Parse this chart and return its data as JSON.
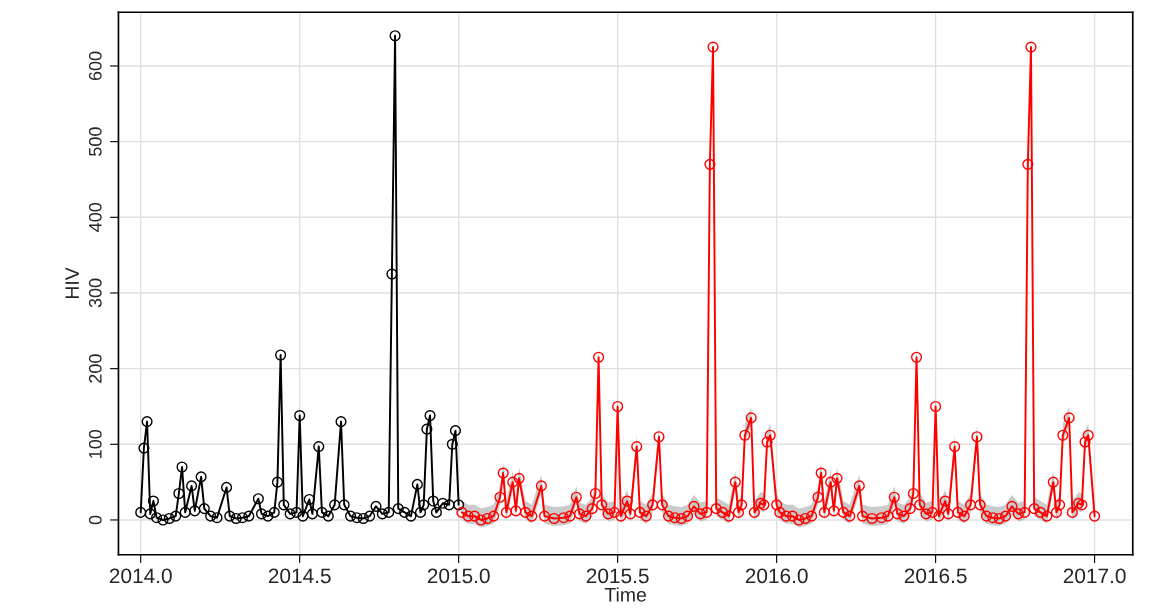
{
  "chart_data": {
    "type": "line",
    "xlabel": "Time",
    "ylabel": "HIV",
    "xlim": [
      2013.93,
      2017.12
    ],
    "ylim": [
      -46,
      671
    ],
    "xticks": [
      {
        "value": 2014,
        "label": "2014.0"
      },
      {
        "value": 2014.5,
        "label": "2014.5"
      },
      {
        "value": 2015,
        "label": "2015.0"
      },
      {
        "value": 2015.5,
        "label": "2015.5"
      },
      {
        "value": 2016,
        "label": "2016.0"
      },
      {
        "value": 2016.5,
        "label": "2016.5"
      },
      {
        "value": 2017,
        "label": "2017.0"
      }
    ],
    "yticks": [
      0,
      100,
      200,
      300,
      400,
      500,
      600
    ],
    "grid": true,
    "marker": "circle",
    "line_style": "solid",
    "series": [
      {
        "color": "#000000",
        "x": [
          2014.0,
          2014.01,
          2014.02,
          2014.03,
          2014.04,
          2014.05,
          2014.07,
          2014.09,
          2014.11,
          2014.12,
          2014.13,
          2014.14,
          2014.16,
          2014.17,
          2014.19,
          2014.2,
          2014.22,
          2014.24,
          2014.27,
          2014.28,
          2014.3,
          2014.32,
          2014.34,
          2014.37,
          2014.38,
          2014.4,
          2014.42,
          2014.43,
          2014.44,
          2014.45,
          2014.47,
          2014.49,
          2014.5,
          2014.51,
          2014.53,
          2014.54,
          2014.56,
          2014.57,
          2014.59,
          2014.61,
          2014.63,
          2014.64,
          2014.66,
          2014.68,
          2014.7,
          2014.72,
          2014.74,
          2014.76,
          2014.78,
          2014.79,
          2014.8,
          2014.81,
          2014.83,
          2014.85,
          2014.87,
          2014.88,
          2014.89,
          2014.9,
          2014.91,
          2014.92,
          2014.93,
          2014.95,
          2014.97,
          2014.98,
          2014.99,
          2015.0
        ],
        "values": [
          10,
          95,
          130,
          8,
          25,
          3,
          0,
          2,
          5,
          35,
          70,
          10,
          45,
          12,
          57,
          15,
          5,
          3,
          43,
          5,
          2,
          3,
          5,
          28,
          8,
          5,
          10,
          50,
          218,
          20,
          8,
          10,
          138,
          5,
          27,
          8,
          97,
          10,
          5,
          20,
          130,
          20,
          5,
          3,
          2,
          5,
          18,
          8,
          10,
          325,
          640,
          15,
          10,
          5,
          47,
          10,
          20,
          120,
          138,
          25,
          10,
          22,
          20,
          100,
          118,
          20
        ]
      },
      {
        "color": "#ff0000",
        "x": [
          2015.01,
          2015.03,
          2015.05,
          2015.07,
          2015.09,
          2015.11,
          2015.13,
          2015.14,
          2015.15,
          2015.17,
          2015.18,
          2015.19,
          2015.21,
          2015.23,
          2015.26,
          2015.27,
          2015.3,
          2015.33,
          2015.35,
          2015.37,
          2015.38,
          2015.4,
          2015.42,
          2015.43,
          2015.44,
          2015.45,
          2015.47,
          2015.49,
          2015.5,
          2015.51,
          2015.53,
          2015.54,
          2015.56,
          2015.57,
          2015.59,
          2015.61,
          2015.63,
          2015.64,
          2015.66,
          2015.68,
          2015.7,
          2015.72,
          2015.74,
          2015.76,
          2015.78,
          2015.79,
          2015.8,
          2015.81,
          2015.83,
          2015.85,
          2015.87,
          2015.88,
          2015.89,
          2015.9,
          2015.92,
          2015.93,
          2015.95,
          2015.96,
          2015.97,
          2015.98,
          2016.0,
          2016.01,
          2016.03,
          2016.05,
          2016.07,
          2016.09,
          2016.11,
          2016.13,
          2016.14,
          2016.15,
          2016.17,
          2016.18,
          2016.19,
          2016.21,
          2016.23,
          2016.26,
          2016.27,
          2016.3,
          2016.33,
          2016.35,
          2016.37,
          2016.38,
          2016.4,
          2016.42,
          2016.43,
          2016.44,
          2016.45,
          2016.47,
          2016.49,
          2016.5,
          2016.51,
          2016.53,
          2016.54,
          2016.56,
          2016.57,
          2016.59,
          2016.61,
          2016.63,
          2016.64,
          2016.66,
          2016.68,
          2016.7,
          2016.72,
          2016.74,
          2016.76,
          2016.78,
          2016.79,
          2016.8,
          2016.81,
          2016.83,
          2016.85,
          2016.87,
          2016.88,
          2016.89,
          2016.9,
          2016.92,
          2016.93,
          2016.95,
          2016.96,
          2016.97,
          2016.98,
          2017.0
        ],
        "values": [
          10,
          5,
          5,
          0,
          2,
          5,
          30,
          62,
          10,
          50,
          12,
          55,
          10,
          5,
          45,
          5,
          2,
          3,
          5,
          30,
          8,
          5,
          15,
          35,
          215,
          20,
          8,
          10,
          150,
          5,
          25,
          8,
          97,
          10,
          5,
          20,
          110,
          20,
          5,
          3,
          2,
          5,
          18,
          8,
          10,
          470,
          625,
          15,
          10,
          5,
          50,
          10,
          20,
          112,
          135,
          10,
          22,
          20,
          103,
          112,
          20,
          10,
          5,
          5,
          0,
          2,
          5,
          30,
          62,
          10,
          50,
          12,
          55,
          10,
          5,
          45,
          5,
          2,
          3,
          5,
          30,
          8,
          5,
          15,
          35,
          215,
          20,
          8,
          10,
          150,
          5,
          25,
          8,
          97,
          10,
          5,
          20,
          110,
          20,
          5,
          3,
          2,
          5,
          18,
          8,
          10,
          470,
          625,
          15,
          10,
          5,
          50,
          10,
          20,
          112,
          135,
          10,
          22,
          20,
          103,
          112,
          5
        ],
        "lower": [
          0,
          -5,
          -5,
          -10,
          -8,
          -5,
          20,
          52,
          0,
          40,
          2,
          45,
          0,
          -5,
          35,
          -5,
          -8,
          -7,
          -5,
          20,
          -2,
          -5,
          5,
          25,
          205,
          10,
          -2,
          0,
          140,
          -5,
          15,
          -2,
          87,
          0,
          -5,
          10,
          100,
          10,
          -5,
          -7,
          -8,
          -5,
          8,
          -2,
          0,
          460,
          615,
          5,
          0,
          -5,
          40,
          0,
          10,
          102,
          125,
          0,
          12,
          10,
          93,
          102,
          10,
          0,
          -5,
          -5,
          -10,
          -8,
          -5,
          20,
          52,
          0,
          40,
          2,
          45,
          0,
          -5,
          35,
          -5,
          -8,
          -7,
          -5,
          20,
          -2,
          -5,
          5,
          25,
          205,
          10,
          -2,
          0,
          140,
          -5,
          15,
          -2,
          87,
          0,
          -5,
          10,
          100,
          10,
          -5,
          -7,
          -8,
          -5,
          8,
          -2,
          0,
          460,
          615,
          5,
          0,
          -5,
          40,
          0,
          10,
          102,
          125,
          0,
          12,
          10,
          93,
          102,
          -5
        ],
        "upper": [
          25,
          20,
          20,
          15,
          17,
          20,
          45,
          77,
          25,
          65,
          27,
          70,
          25,
          20,
          60,
          20,
          17,
          18,
          20,
          45,
          23,
          20,
          30,
          50,
          230,
          35,
          23,
          25,
          165,
          20,
          40,
          23,
          112,
          25,
          20,
          35,
          125,
          35,
          20,
          18,
          17,
          20,
          33,
          23,
          25,
          485,
          640,
          30,
          25,
          20,
          65,
          25,
          35,
          127,
          150,
          25,
          37,
          35,
          118,
          127,
          35,
          25,
          20,
          20,
          15,
          17,
          20,
          45,
          77,
          25,
          65,
          27,
          70,
          25,
          20,
          60,
          20,
          17,
          18,
          20,
          45,
          23,
          20,
          30,
          50,
          230,
          35,
          23,
          25,
          165,
          20,
          40,
          23,
          112,
          25,
          20,
          35,
          125,
          35,
          20,
          18,
          17,
          20,
          33,
          23,
          25,
          485,
          640,
          30,
          25,
          20,
          65,
          25,
          35,
          127,
          150,
          25,
          37,
          35,
          118,
          127,
          20
        ]
      }
    ]
  }
}
